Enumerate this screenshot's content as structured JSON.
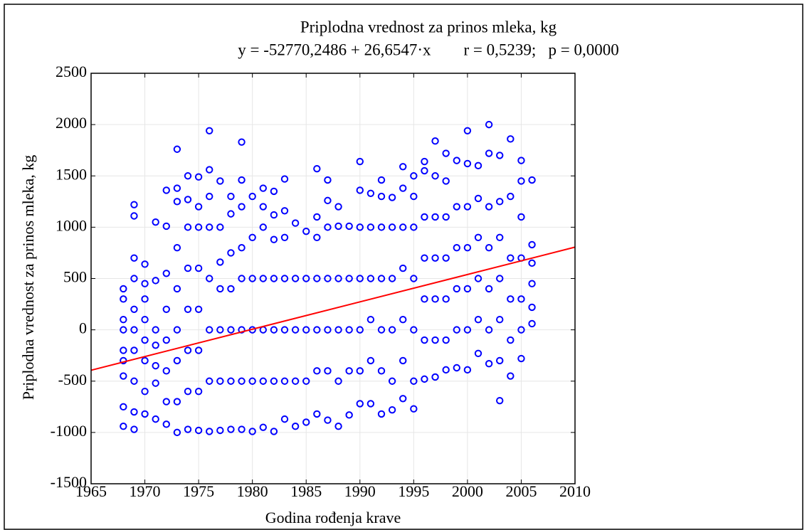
{
  "chart_data": {
    "type": "scatter",
    "title": "Priplodna vrednost za prinos mleka, kg",
    "subtitle": "y = -52770,2486 + 26,6547·x        r = 0,5239;   p = 0,0000",
    "xlabel": "Godina rođenja krave",
    "ylabel": "Priplodna vrednost za prinos mleka, kg",
    "xlim": [
      1965,
      2010
    ],
    "ylim": [
      -1500,
      2500
    ],
    "xticks": [
      1965,
      1970,
      1975,
      1980,
      1985,
      1990,
      1995,
      2000,
      2005,
      2010
    ],
    "yticks": [
      -1500,
      -1000,
      -500,
      0,
      500,
      1000,
      1500,
      2000,
      2500
    ],
    "grid": true,
    "trend": {
      "intercept": -52770.2486,
      "slope": 26.6547,
      "color": "#ff0000"
    },
    "series": [
      {
        "color": "#0000ff",
        "x": [
          1968,
          1968,
          1968,
          1968,
          1968,
          1968,
          1968,
          1968,
          1968,
          1969,
          1969,
          1969,
          1969,
          1969,
          1969,
          1969,
          1969,
          1969,
          1969,
          1970,
          1970,
          1970,
          1970,
          1970,
          1970,
          1970,
          1970,
          1971,
          1971,
          1971,
          1971,
          1971,
          1971,
          1971,
          1972,
          1972,
          1972,
          1972,
          1972,
          1972,
          1972,
          1972,
          1973,
          1973,
          1973,
          1973,
          1973,
          1973,
          1973,
          1973,
          1973,
          1974,
          1974,
          1974,
          1974,
          1974,
          1974,
          1974,
          1974,
          1975,
          1975,
          1975,
          1975,
          1975,
          1975,
          1975,
          1975,
          1976,
          1976,
          1976,
          1976,
          1976,
          1976,
          1976,
          1976,
          1977,
          1977,
          1977,
          1977,
          1977,
          1977,
          1977,
          1978,
          1978,
          1978,
          1978,
          1978,
          1978,
          1978,
          1979,
          1979,
          1979,
          1979,
          1979,
          1979,
          1979,
          1979,
          1980,
          1980,
          1980,
          1980,
          1980,
          1980,
          1981,
          1981,
          1981,
          1981,
          1981,
          1981,
          1981,
          1982,
          1982,
          1982,
          1982,
          1982,
          1982,
          1982,
          1983,
          1983,
          1983,
          1983,
          1983,
          1983,
          1983,
          1984,
          1984,
          1984,
          1984,
          1984,
          1985,
          1985,
          1985,
          1985,
          1985,
          1986,
          1986,
          1986,
          1986,
          1986,
          1986,
          1986,
          1987,
          1987,
          1987,
          1987,
          1987,
          1987,
          1987,
          1988,
          1988,
          1988,
          1988,
          1988,
          1988,
          1989,
          1989,
          1989,
          1989,
          1989,
          1990,
          1990,
          1990,
          1990,
          1990,
          1990,
          1990,
          1991,
          1991,
          1991,
          1991,
          1991,
          1991,
          1992,
          1992,
          1992,
          1992,
          1992,
          1992,
          1992,
          1993,
          1993,
          1993,
          1993,
          1993,
          1993,
          1994,
          1994,
          1994,
          1994,
          1994,
          1994,
          1994,
          1995,
          1995,
          1995,
          1995,
          1995,
          1995,
          1995,
          1996,
          1996,
          1996,
          1996,
          1996,
          1996,
          1996,
          1997,
          1997,
          1997,
          1997,
          1997,
          1997,
          1997,
          1998,
          1998,
          1998,
          1998,
          1998,
          1998,
          1998,
          1999,
          1999,
          1999,
          1999,
          1999,
          1999,
          2000,
          2000,
          2000,
          2000,
          2000,
          2000,
          2000,
          2001,
          2001,
          2001,
          2001,
          2001,
          2001,
          2002,
          2002,
          2002,
          2002,
          2002,
          2002,
          2002,
          2003,
          2003,
          2003,
          2003,
          2003,
          2003,
          2003,
          2004,
          2004,
          2004,
          2004,
          2004,
          2004,
          2005,
          2005,
          2005,
          2005,
          2005,
          2005,
          2005,
          2006,
          2006,
          2006,
          2006,
          2006,
          2006
        ],
        "values": [
          -940,
          -750,
          -450,
          -300,
          -200,
          0,
          100,
          300,
          400,
          -970,
          -800,
          -500,
          -200,
          0,
          200,
          500,
          700,
          1110,
          1220,
          -820,
          -600,
          -300,
          -100,
          100,
          300,
          450,
          640,
          -870,
          -520,
          -350,
          -150,
          0,
          480,
          1050,
          -920,
          -700,
          -400,
          -100,
          200,
          550,
          1010,
          1360,
          -1000,
          -700,
          -300,
          0,
          400,
          800,
          1250,
          1380,
          1760,
          -970,
          -600,
          -200,
          200,
          600,
          1000,
          1270,
          1500,
          -980,
          -600,
          -200,
          200,
          600,
          1000,
          1200,
          1490,
          -990,
          -500,
          0,
          500,
          1000,
          1300,
          1560,
          1940,
          -980,
          -500,
          0,
          400,
          660,
          1000,
          1450,
          -970,
          -500,
          0,
          400,
          750,
          1130,
          1300,
          -970,
          -500,
          0,
          500,
          800,
          1200,
          1460,
          1830,
          -990,
          -500,
          0,
          500,
          900,
          1300,
          -950,
          -500,
          0,
          500,
          1000,
          1200,
          1380,
          -990,
          -500,
          0,
          500,
          880,
          1120,
          1350,
          -870,
          -500,
          0,
          500,
          900,
          1160,
          1470,
          -940,
          -500,
          0,
          500,
          1040,
          -900,
          -500,
          0,
          500,
          960,
          -820,
          -400,
          0,
          500,
          900,
          1100,
          1570,
          -880,
          -400,
          0,
          500,
          1000,
          1260,
          1460,
          -940,
          -500,
          0,
          500,
          1010,
          1200,
          -830,
          -400,
          0,
          500,
          1010,
          -720,
          -400,
          0,
          500,
          1000,
          1360,
          1640,
          -720,
          -300,
          100,
          500,
          1000,
          1330,
          -820,
          -400,
          0,
          500,
          1000,
          1300,
          1460,
          -780,
          -500,
          0,
          500,
          1000,
          1290,
          -670,
          -300,
          100,
          600,
          1000,
          1380,
          1590,
          -770,
          -500,
          0,
          500,
          1000,
          1300,
          1500,
          -480,
          -100,
          300,
          700,
          1100,
          1550,
          1640,
          -460,
          -100,
          300,
          700,
          1100,
          1500,
          1840,
          -390,
          -100,
          300,
          700,
          1100,
          1450,
          1720,
          -370,
          0,
          400,
          800,
          1200,
          1650,
          -390,
          0,
          400,
          800,
          1200,
          1620,
          1940,
          -230,
          100,
          500,
          900,
          1280,
          1600,
          -330,
          0,
          400,
          800,
          1200,
          1720,
          2000,
          -690,
          -300,
          100,
          500,
          900,
          1250,
          1700,
          -450,
          -100,
          300,
          700,
          1300,
          1860,
          -280,
          0,
          300,
          700,
          1100,
          1450,
          1650,
          60,
          220,
          450,
          650,
          830,
          1460
        ]
      }
    ]
  }
}
